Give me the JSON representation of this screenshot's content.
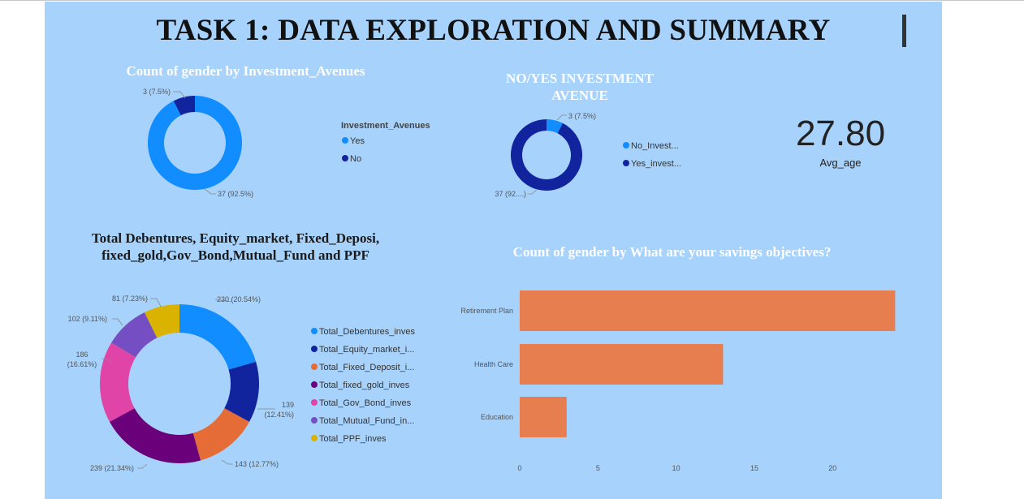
{
  "page_title": "TASK 1: DATA EXPLORATION AND SUMMARY",
  "chart_data": [
    {
      "type": "pie",
      "title": "Count of gender by Investment_Avenues",
      "legend_title": "Investment_Avenues",
      "slices": [
        {
          "name": "Yes",
          "value": 37,
          "label": "37 (92.5%)",
          "color": "#118dff"
        },
        {
          "name": "No",
          "value": 3,
          "label": "3 (7.5%)",
          "color": "#12239e"
        }
      ]
    },
    {
      "type": "pie",
      "title": "NO/YES INVESTMENT AVENUE",
      "slices": [
        {
          "name": "No_Invest...",
          "value": 3,
          "label": "3 (7.5%)",
          "color": "#118dff"
        },
        {
          "name": "Yes_invest...",
          "value": 37,
          "label": "37 (92....)",
          "color": "#12239e"
        }
      ]
    },
    {
      "type": "card",
      "value": "27.80",
      "label": "Avg_age"
    },
    {
      "type": "pie",
      "title": "Total Debentures, Equity_market, Fixed_Deposi, fixed_gold,Gov_Bond,Mutual_Fund and PPF",
      "slices": [
        {
          "name": "Total_Debentures_inves",
          "value": 230,
          "label": "230 (20.54%)",
          "color": "#118dff"
        },
        {
          "name": "Total_Equity_market_i...",
          "value": 139,
          "label": "139 (12.41%)",
          "color": "#12239e"
        },
        {
          "name": "Total_Fixed_Deposit_i...",
          "value": 143,
          "label": "143 (12.77%)",
          "color": "#e66c37"
        },
        {
          "name": "Total_fixed_gold_inves",
          "value": 239,
          "label": "239 (21.34%)",
          "color": "#6b007b"
        },
        {
          "name": "Total_Gov_Bond_inves",
          "value": 186,
          "label": "186 (16.61%)",
          "color": "#e044a7"
        },
        {
          "name": "Total_Mutual_Fund_in...",
          "value": 102,
          "label": "102 (9.11%)",
          "color": "#744ec2"
        },
        {
          "name": "Total_PPF_inves",
          "value": 81,
          "label": "81 (7.23%)",
          "color": "#d9b300"
        }
      ]
    },
    {
      "type": "bar",
      "orientation": "horizontal",
      "title": "Count of gender by What are your savings objectives?",
      "categories": [
        "Retirement Plan",
        "Health Care",
        "Education"
      ],
      "values": [
        24,
        13,
        3
      ],
      "xticks": [
        0,
        5,
        10,
        15,
        20
      ],
      "xlim": [
        0,
        24.5
      ],
      "color": "#e67e50"
    }
  ]
}
